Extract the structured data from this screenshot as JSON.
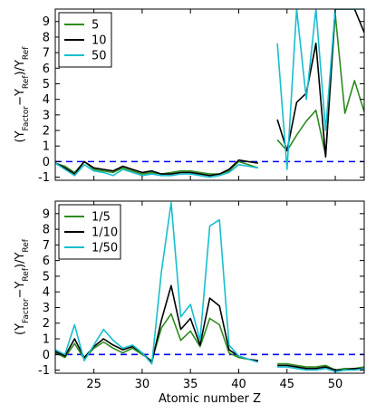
{
  "chart_data": [
    {
      "type": "line",
      "xlim": [
        21,
        53
      ],
      "ylim": [
        -1.2,
        9.8
      ],
      "xticks": [
        25,
        30,
        35,
        40,
        45,
        50
      ],
      "yticks": [
        -1,
        0,
        1,
        2,
        3,
        4,
        5,
        6,
        7,
        8,
        9
      ],
      "xtick_labels": [
        "",
        "",
        "",
        "",
        "",
        ""
      ],
      "ylabel": "(Y_Factor − Y_Ref)/Y_Ref",
      "xlabel": "",
      "reference_line": {
        "y": 0,
        "color": "#0000ff",
        "style": "dashed"
      },
      "legend": {
        "placement": "top-left"
      },
      "series": [
        {
          "name": "5",
          "color": "#2e8b1e",
          "segments": [
            {
              "x": [
                21,
                22,
                23,
                24,
                25,
                26,
                27,
                28,
                29,
                30,
                31,
                32,
                33,
                34,
                35,
                36,
                37,
                38,
                39,
                40,
                41,
                42
              ],
              "y": [
                -0.1,
                -0.3,
                -0.7,
                0.0,
                -0.5,
                -0.6,
                -0.7,
                -0.4,
                -0.6,
                -0.8,
                -0.7,
                -0.8,
                -0.7,
                -0.6,
                -0.6,
                -0.7,
                -0.8,
                -0.8,
                -0.6,
                0.0,
                -0.2,
                -0.4
              ]
            },
            {
              "x": [
                44,
                45,
                46,
                47,
                48,
                49,
                50,
                51,
                52,
                53
              ],
              "y": [
                1.4,
                0.7,
                1.7,
                2.6,
                3.3,
                0.4,
                9.5,
                3.1,
                5.2,
                3.2
              ]
            }
          ]
        },
        {
          "name": "10",
          "color": "#000000",
          "segments": [
            {
              "x": [
                21,
                22,
                23,
                24,
                25,
                26,
                27,
                28,
                29,
                30,
                31,
                32,
                33,
                34,
                35,
                36,
                37,
                38,
                39,
                40,
                41,
                42
              ],
              "y": [
                -0.1,
                -0.4,
                -0.8,
                0.0,
                -0.4,
                -0.5,
                -0.6,
                -0.3,
                -0.5,
                -0.7,
                -0.6,
                -0.8,
                -0.8,
                -0.7,
                -0.7,
                -0.8,
                -0.9,
                -0.8,
                -0.5,
                0.1,
                0.0,
                -0.1
              ]
            },
            {
              "x": [
                44,
                45,
                46,
                47,
                48,
                49,
                50,
                51,
                52,
                53
              ],
              "y": [
                2.7,
                0.7,
                3.8,
                4.4,
                7.6,
                0.3,
                9.8,
                9.8,
                9.8,
                8.3
              ]
            }
          ]
        },
        {
          "name": "50",
          "color": "#17becf",
          "segments": [
            {
              "x": [
                21,
                22,
                23,
                24,
                25,
                26,
                27,
                28,
                29,
                30,
                31,
                32,
                33,
                34,
                35,
                36,
                37,
                38,
                39,
                40,
                41,
                42
              ],
              "y": [
                -0.1,
                -0.5,
                -0.9,
                -0.2,
                -0.6,
                -0.7,
                -0.9,
                -0.5,
                -0.7,
                -0.9,
                -0.8,
                -0.9,
                -0.9,
                -0.8,
                -0.8,
                -0.9,
                -1.0,
                -0.9,
                -0.7,
                -0.2,
                -0.3,
                -0.4
              ]
            },
            {
              "x": [
                44,
                45,
                46,
                47,
                48,
                49,
                50,
                51,
                52,
                53
              ],
              "y": [
                7.6,
                -0.5,
                9.8,
                4.0,
                9.8,
                2.0,
                9.8,
                9.8,
                9.8,
                9.8
              ]
            }
          ]
        }
      ]
    },
    {
      "type": "line",
      "xlim": [
        21,
        53
      ],
      "ylim": [
        -1.2,
        9.8
      ],
      "xticks": [
        25,
        30,
        35,
        40,
        45,
        50
      ],
      "yticks": [
        -1,
        0,
        1,
        2,
        3,
        4,
        5,
        6,
        7,
        8,
        9
      ],
      "xtick_labels": [
        "25",
        "30",
        "35",
        "40",
        "45",
        "50"
      ],
      "ylabel": "(Y_Factor − Y_Ref)/Y_Ref",
      "xlabel": "Atomic number Z",
      "reference_line": {
        "y": 0,
        "color": "#0000ff",
        "style": "dashed"
      },
      "legend": {
        "placement": "top-left"
      },
      "series": [
        {
          "name": "1/5",
          "color": "#2e8b1e",
          "segments": [
            {
              "x": [
                21,
                22,
                23,
                24,
                25,
                26,
                27,
                28,
                29,
                30,
                31,
                32,
                33,
                34,
                35,
                36,
                37,
                38,
                39,
                40,
                41,
                42
              ],
              "y": [
                0.1,
                -0.2,
                0.7,
                -0.3,
                0.4,
                0.8,
                0.4,
                0.1,
                0.4,
                0.0,
                -0.4,
                1.7,
                2.6,
                0.9,
                1.5,
                0.5,
                2.3,
                1.9,
                0.1,
                -0.2,
                -0.3,
                -0.4
              ]
            },
            {
              "x": [
                44,
                45,
                46,
                47,
                48,
                49,
                50,
                51,
                52,
                53
              ],
              "y": [
                -0.6,
                -0.6,
                -0.7,
                -0.8,
                -0.8,
                -0.7,
                -1.0,
                -0.9,
                -0.9,
                -0.8
              ]
            }
          ]
        },
        {
          "name": "1/10",
          "color": "#000000",
          "segments": [
            {
              "x": [
                21,
                22,
                23,
                24,
                25,
                26,
                27,
                28,
                29,
                30,
                31,
                32,
                33,
                34,
                35,
                36,
                37,
                38,
                39,
                40,
                41,
                42
              ],
              "y": [
                0.2,
                -0.1,
                1.0,
                -0.2,
                0.5,
                1.0,
                0.6,
                0.3,
                0.5,
                0.1,
                -0.5,
                2.2,
                4.4,
                1.6,
                2.3,
                0.6,
                3.6,
                3.1,
                0.3,
                -0.1,
                -0.3,
                -0.4
              ]
            },
            {
              "x": [
                44,
                45,
                46,
                47,
                48,
                49,
                50,
                51,
                52,
                53
              ],
              "y": [
                -0.7,
                -0.7,
                -0.8,
                -0.9,
                -0.9,
                -0.8,
                -1.0,
                -1.0,
                -0.9,
                -0.9
              ]
            }
          ]
        },
        {
          "name": "1/50",
          "color": "#17becf",
          "segments": [
            {
              "x": [
                21,
                22,
                23,
                24,
                25,
                26,
                27,
                28,
                29,
                30,
                31,
                32,
                33,
                34,
                35,
                36,
                37,
                38,
                39,
                40,
                41,
                42
              ],
              "y": [
                0.3,
                0.0,
                1.9,
                -0.4,
                0.6,
                1.6,
                0.9,
                0.4,
                0.6,
                0.1,
                -0.6,
                5.3,
                9.7,
                2.4,
                3.2,
                0.9,
                8.2,
                8.6,
                0.6,
                -0.1,
                -0.3,
                -0.5
              ]
            },
            {
              "x": [
                44,
                45,
                46,
                47,
                48,
                49,
                50,
                51,
                52,
                53
              ],
              "y": [
                -0.8,
                -0.8,
                -0.9,
                -1.0,
                -1.0,
                -0.9,
                -1.1,
                -1.0,
                -1.0,
                -0.9
              ]
            }
          ]
        }
      ]
    }
  ]
}
